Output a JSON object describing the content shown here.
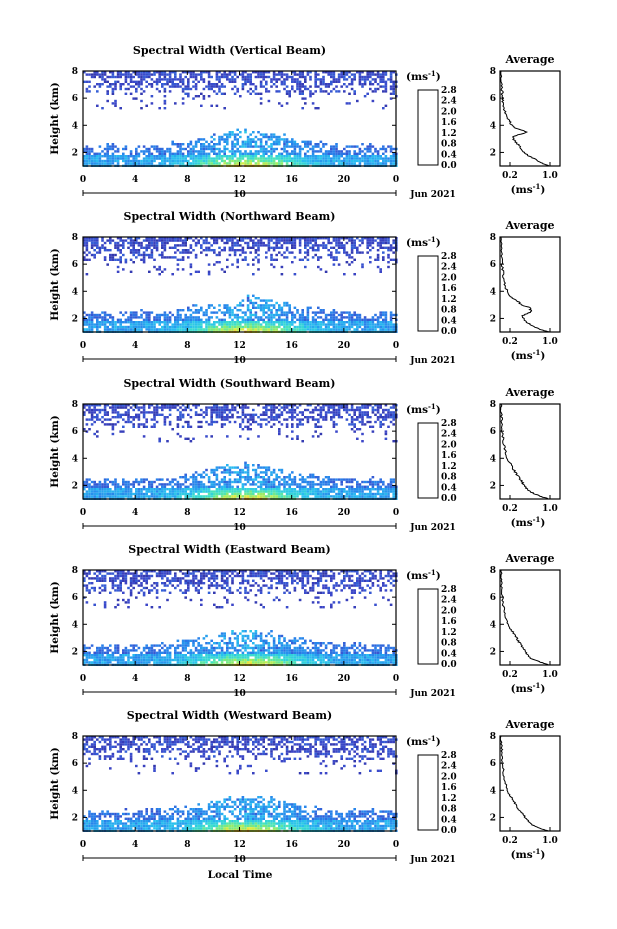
{
  "figure": {
    "y_axis_label": "Height (km)",
    "x_axis_label": "Local Time",
    "date_label": "Jun 2021",
    "colorbar_unit_prefix": "(ms",
    "colorbar_unit_exp": "-1",
    "colorbar_unit_suffix": ")",
    "profile_title": "Average",
    "profile_unit_prefix": "(ms",
    "profile_unit_exp": "-1",
    "profile_unit_suffix": ")"
  },
  "chart_data": [
    {
      "type": "heatmap",
      "title": "Spectral Width (Vertical Beam)",
      "xlabel": "",
      "ylabel": "Height (km)",
      "xlim": [
        0,
        24
      ],
      "ylim": [
        1,
        8
      ],
      "x_ticks": [
        "0",
        "4",
        "8",
        "12",
        "16",
        "20",
        "0"
      ],
      "day_tick": "10",
      "y_ticks": [
        "8",
        "6",
        "4",
        "2"
      ],
      "colorbar": {
        "range": [
          0,
          2.8
        ],
        "ticks": [
          "2.8",
          "2.4",
          "2.0",
          "1.6",
          "1.2",
          "0.8",
          "0.4",
          "0.0"
        ]
      },
      "average_profile": {
        "xlim": [
          0,
          1.2
        ],
        "x_ticks": [
          "0.2",
          "1.0"
        ],
        "ylim": [
          1,
          8
        ],
        "y_ticks": [
          "8",
          "6",
          "4",
          "2"
        ],
        "points": [
          [
            0.98,
            1.0
          ],
          [
            0.85,
            1.2
          ],
          [
            0.7,
            1.5
          ],
          [
            0.55,
            1.8
          ],
          [
            0.45,
            2.1
          ],
          [
            0.38,
            2.5
          ],
          [
            0.28,
            2.9
          ],
          [
            0.27,
            3.2
          ],
          [
            0.55,
            3.5
          ],
          [
            0.3,
            3.8
          ],
          [
            0.22,
            4.1
          ],
          [
            0.16,
            4.5
          ],
          [
            0.1,
            5.0
          ],
          [
            0.07,
            5.5
          ],
          [
            0.05,
            6.0
          ],
          [
            0.04,
            6.6
          ],
          [
            0.03,
            7.2
          ],
          [
            0.02,
            8.0
          ]
        ]
      }
    },
    {
      "type": "heatmap",
      "title": "Spectral Width (Northward Beam)",
      "xlabel": "",
      "ylabel": "Height (km)",
      "xlim": [
        0,
        24
      ],
      "ylim": [
        1,
        8
      ],
      "x_ticks": [
        "0",
        "4",
        "8",
        "12",
        "16",
        "20",
        "0"
      ],
      "day_tick": "10",
      "y_ticks": [
        "8",
        "6",
        "4",
        "2"
      ],
      "colorbar": {
        "range": [
          0,
          2.8
        ],
        "ticks": [
          "2.8",
          "2.4",
          "2.0",
          "1.6",
          "1.2",
          "0.8",
          "0.4",
          "0.0"
        ]
      },
      "average_profile": {
        "xlim": [
          0,
          1.2
        ],
        "x_ticks": [
          "0.2",
          "1.0"
        ],
        "ylim": [
          1,
          8
        ],
        "y_ticks": [
          "8",
          "6",
          "4",
          "2"
        ],
        "points": [
          [
            0.98,
            1.0
          ],
          [
            0.8,
            1.2
          ],
          [
            0.62,
            1.5
          ],
          [
            0.5,
            1.8
          ],
          [
            0.45,
            2.2
          ],
          [
            0.62,
            2.5
          ],
          [
            0.6,
            2.8
          ],
          [
            0.42,
            3.0
          ],
          [
            0.35,
            3.3
          ],
          [
            0.2,
            3.6
          ],
          [
            0.12,
            4.2
          ],
          [
            0.08,
            4.8
          ],
          [
            0.06,
            5.5
          ],
          [
            0.04,
            6.2
          ],
          [
            0.03,
            7.0
          ],
          [
            0.02,
            8.0
          ]
        ]
      }
    },
    {
      "type": "heatmap",
      "title": "Spectral Width (Southward Beam)",
      "xlabel": "",
      "ylabel": "Height (km)",
      "xlim": [
        0,
        24
      ],
      "ylim": [
        1,
        8
      ],
      "x_ticks": [
        "0",
        "4",
        "8",
        "12",
        "16",
        "20",
        "0"
      ],
      "day_tick": "10",
      "y_ticks": [
        "8",
        "6",
        "4",
        "2"
      ],
      "colorbar": {
        "range": [
          0,
          2.8
        ],
        "ticks": [
          "2.8",
          "2.4",
          "2.0",
          "1.6",
          "1.2",
          "0.8",
          "0.4",
          "0.0"
        ]
      },
      "average_profile": {
        "xlim": [
          0,
          1.2
        ],
        "x_ticks": [
          "0.2",
          "1.0"
        ],
        "ylim": [
          1,
          8
        ],
        "y_ticks": [
          "8",
          "6",
          "4",
          "2"
        ],
        "points": [
          [
            0.98,
            1.0
          ],
          [
            0.8,
            1.2
          ],
          [
            0.62,
            1.5
          ],
          [
            0.52,
            1.8
          ],
          [
            0.45,
            2.2
          ],
          [
            0.38,
            2.6
          ],
          [
            0.3,
            3.0
          ],
          [
            0.22,
            3.5
          ],
          [
            0.15,
            4.0
          ],
          [
            0.1,
            4.6
          ],
          [
            0.07,
            5.2
          ],
          [
            0.05,
            5.8
          ],
          [
            0.04,
            6.5
          ],
          [
            0.03,
            7.2
          ],
          [
            0.02,
            8.0
          ]
        ]
      }
    },
    {
      "type": "heatmap",
      "title": "Spectral Width (Eastward Beam)",
      "xlabel": "",
      "ylabel": "Height (km)",
      "xlim": [
        0,
        24
      ],
      "ylim": [
        1,
        8
      ],
      "x_ticks": [
        "0",
        "4",
        "8",
        "12",
        "16",
        "20",
        "0"
      ],
      "day_tick": "10",
      "y_ticks": [
        "8",
        "6",
        "4",
        "2"
      ],
      "colorbar": {
        "range": [
          0,
          2.8
        ],
        "ticks": [
          "2.8",
          "2.4",
          "2.0",
          "1.6",
          "1.2",
          "0.8",
          "0.4",
          "0.0"
        ]
      },
      "average_profile": {
        "xlim": [
          0,
          1.2
        ],
        "x_ticks": [
          "0.2",
          "1.0"
        ],
        "ylim": [
          1,
          8
        ],
        "y_ticks": [
          "8",
          "6",
          "4",
          "2"
        ],
        "points": [
          [
            0.98,
            1.0
          ],
          [
            0.82,
            1.2
          ],
          [
            0.62,
            1.5
          ],
          [
            0.52,
            1.9
          ],
          [
            0.45,
            2.3
          ],
          [
            0.38,
            2.7
          ],
          [
            0.32,
            3.1
          ],
          [
            0.22,
            3.6
          ],
          [
            0.15,
            4.1
          ],
          [
            0.1,
            4.7
          ],
          [
            0.07,
            5.3
          ],
          [
            0.05,
            6.0
          ],
          [
            0.04,
            6.7
          ],
          [
            0.03,
            7.3
          ],
          [
            0.02,
            8.0
          ]
        ]
      }
    },
    {
      "type": "heatmap",
      "title": "Spectral Width (Westward Beam)",
      "xlabel": "Local Time",
      "ylabel": "Height (km)",
      "xlim": [
        0,
        24
      ],
      "ylim": [
        1,
        8
      ],
      "x_ticks": [
        "0",
        "4",
        "8",
        "12",
        "16",
        "20",
        "0"
      ],
      "day_tick": "10",
      "y_ticks": [
        "8",
        "6",
        "4",
        "2"
      ],
      "colorbar": {
        "range": [
          0,
          2.8
        ],
        "ticks": [
          "2.8",
          "2.4",
          "2.0",
          "1.6",
          "1.2",
          "0.8",
          "0.4",
          "0.0"
        ]
      },
      "average_profile": {
        "xlim": [
          0,
          1.2
        ],
        "x_ticks": [
          "0.2",
          "1.0"
        ],
        "ylim": [
          1,
          8
        ],
        "y_ticks": [
          "8",
          "6",
          "4",
          "2"
        ],
        "points": [
          [
            0.98,
            1.0
          ],
          [
            0.8,
            1.2
          ],
          [
            0.62,
            1.5
          ],
          [
            0.52,
            1.9
          ],
          [
            0.45,
            2.3
          ],
          [
            0.35,
            2.7
          ],
          [
            0.3,
            3.1
          ],
          [
            0.2,
            3.6
          ],
          [
            0.15,
            4.1
          ],
          [
            0.1,
            4.7
          ],
          [
            0.07,
            5.3
          ],
          [
            0.05,
            6.0
          ],
          [
            0.04,
            6.7
          ],
          [
            0.03,
            7.3
          ],
          [
            0.02,
            8.0
          ]
        ]
      }
    }
  ]
}
